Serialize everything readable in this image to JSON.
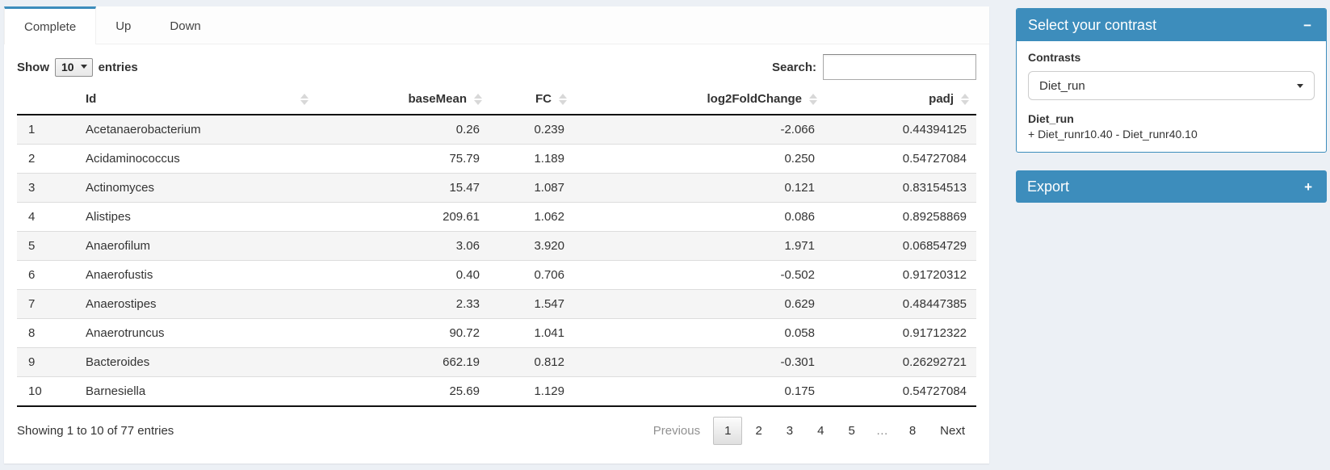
{
  "tabs": {
    "items": [
      {
        "label": "Complete",
        "active": true
      },
      {
        "label": "Up",
        "active": false
      },
      {
        "label": "Down",
        "active": false
      }
    ]
  },
  "length_control": {
    "prefix": "Show",
    "value": "10",
    "suffix": "entries"
  },
  "search": {
    "label": "Search:",
    "value": ""
  },
  "table": {
    "columns": [
      {
        "label": "",
        "sortable": false,
        "align": "left"
      },
      {
        "label": "Id",
        "sortable": true,
        "align": "left"
      },
      {
        "label": "baseMean",
        "sortable": true,
        "align": "right"
      },
      {
        "label": "FC",
        "sortable": true,
        "align": "right"
      },
      {
        "label": "log2FoldChange",
        "sortable": true,
        "align": "right"
      },
      {
        "label": "padj",
        "sortable": true,
        "align": "right"
      }
    ],
    "rows": [
      [
        "1",
        "Acetanaerobacterium",
        "0.26",
        "0.239",
        "-2.066",
        "0.44394125"
      ],
      [
        "2",
        "Acidaminococcus",
        "75.79",
        "1.189",
        "0.250",
        "0.54727084"
      ],
      [
        "3",
        "Actinomyces",
        "15.47",
        "1.087",
        "0.121",
        "0.83154513"
      ],
      [
        "4",
        "Alistipes",
        "209.61",
        "1.062",
        "0.086",
        "0.89258869"
      ],
      [
        "5",
        "Anaerofilum",
        "3.06",
        "3.920",
        "1.971",
        "0.06854729"
      ],
      [
        "6",
        "Anaerofustis",
        "0.40",
        "0.706",
        "-0.502",
        "0.91720312"
      ],
      [
        "7",
        "Anaerostipes",
        "2.33",
        "1.547",
        "0.629",
        "0.48447385"
      ],
      [
        "8",
        "Anaerotruncus",
        "90.72",
        "1.041",
        "0.058",
        "0.91712322"
      ],
      [
        "9",
        "Bacteroides",
        "662.19",
        "0.812",
        "-0.301",
        "0.26292721"
      ],
      [
        "10",
        "Barnesiella",
        "25.69",
        "1.129",
        "0.175",
        "0.54727084"
      ]
    ]
  },
  "footer": {
    "info": "Showing 1 to 10 of 77 entries",
    "pagination": {
      "previous_label": "Previous",
      "pages": [
        "1",
        "2",
        "3",
        "4",
        "5",
        "…",
        "8"
      ],
      "current_page": "1",
      "next_label": "Next"
    }
  },
  "sidebar": {
    "contrast_box": {
      "title": "Select your contrast",
      "collapse_icon": "−",
      "label": "Contrasts",
      "select_value": "Diet_run",
      "detail_title": "Diet_run",
      "detail_text": "+ Diet_runr10.40 - Diet_runr40.10"
    },
    "export_box": {
      "title": "Export",
      "expand_icon": "+"
    }
  },
  "colors": {
    "accent_blue": "#3d8dbc",
    "page_background": "#ecf0f5",
    "row_stripe": "#f5f5f5",
    "table_border_dark": "#111111"
  }
}
